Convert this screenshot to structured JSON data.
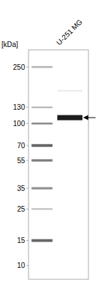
{
  "chart_data": {
    "type": "blot",
    "ylabel": "[kDa]",
    "categories": [
      null,
      "U-251 MG"
    ],
    "values": [
      [
        250,
        130,
        100,
        70,
        55,
        35,
        25,
        15
      ],
      [
        170,
        110
      ]
    ],
    "colors": [
      [
        "#999999",
        "#888888",
        "#777777",
        "#555555",
        "#666666",
        "#777777",
        "#999999",
        "#555555"
      ],
      [
        "#cccccc",
        "#111111"
      ]
    ],
    "arrow": 110,
    "log": "y",
    "ylim": [
      8,
      330
    ],
    "yticks": [
      250,
      130,
      100,
      70,
      55,
      35,
      25,
      15,
      10
    ],
    "tick_labels": "y"
  }
}
